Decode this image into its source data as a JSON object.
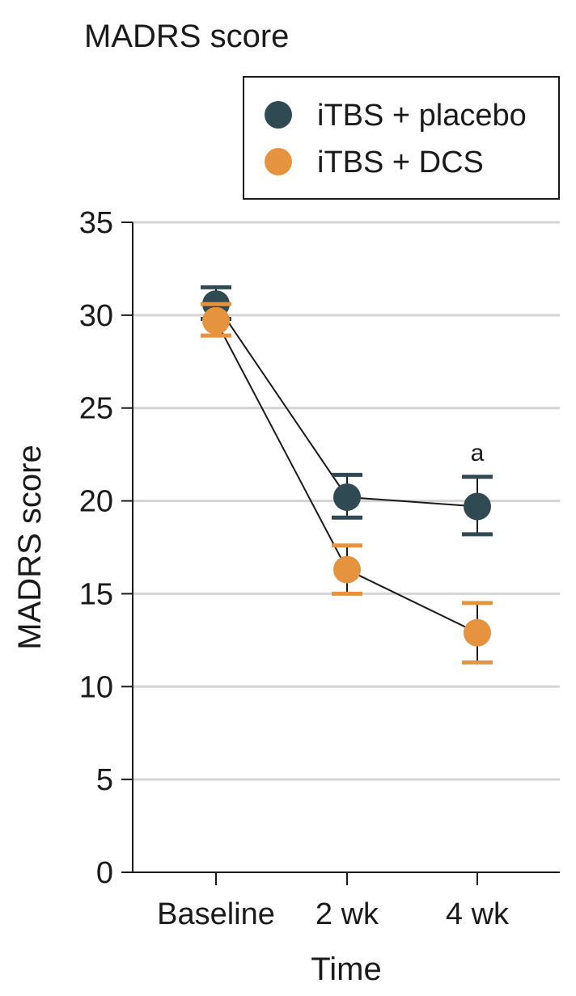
{
  "chart_data": {
    "type": "line",
    "title": "MADRS score",
    "xlabel": "Time",
    "ylabel": "MADRS score",
    "categories": [
      "Baseline",
      "2 wk",
      "4 wk"
    ],
    "ylim": [
      0,
      35
    ],
    "yticks": [
      0,
      5,
      10,
      15,
      20,
      25,
      30,
      35
    ],
    "grid": true,
    "legend_position": "top-right",
    "series": [
      {
        "name": "iTBS + placebo",
        "color": "#2f4a52",
        "values": [
          30.6,
          20.2,
          19.7
        ],
        "err_low": [
          29.8,
          19.1,
          18.2
        ],
        "err_high": [
          31.5,
          21.4,
          21.3
        ]
      },
      {
        "name": "iTBS + DCS",
        "color": "#e69340",
        "values": [
          29.7,
          16.3,
          12.9
        ],
        "err_low": [
          28.9,
          15.0,
          11.3
        ],
        "err_high": [
          30.6,
          17.6,
          14.5
        ]
      }
    ],
    "annotations": [
      {
        "category": "4 wk",
        "y": 22.6,
        "text": "a"
      }
    ]
  }
}
